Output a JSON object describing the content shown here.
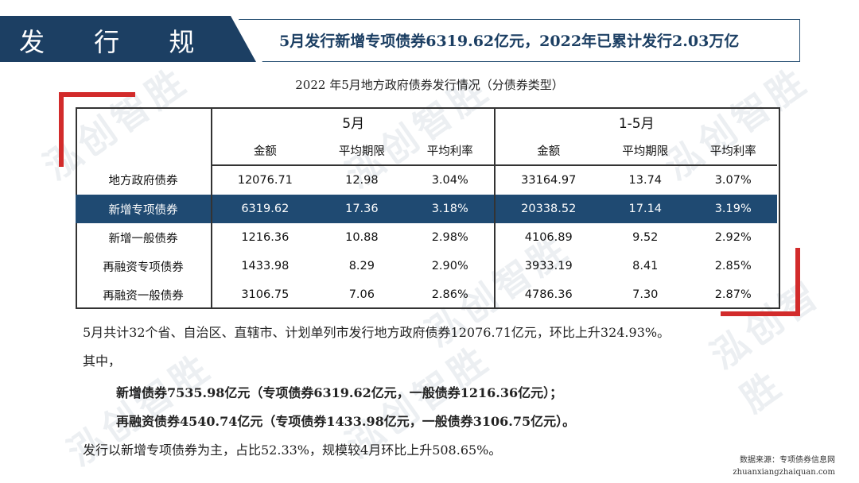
{
  "header": {
    "section_title": "发 行 规 模",
    "headline": "5月发行新增专项债券6319.62亿元，2022年已累计发行2.03万亿"
  },
  "watermark": "泓创智胜",
  "table": {
    "title": "2022 年5月地方政府债券发行情况（分债券类型）",
    "group_headers": [
      "5月",
      "1-5月"
    ],
    "sub_headers": [
      "金额",
      "平均期限",
      "平均利率",
      "金额",
      "平均期限",
      "平均利率"
    ],
    "rows": [
      {
        "name": "地方政府债券",
        "values": [
          "12076.71",
          "12.98",
          "3.04%",
          "33164.97",
          "13.74",
          "3.07%"
        ]
      },
      {
        "name": "新增专项债券",
        "values": [
          "6319.62",
          "17.36",
          "3.18%",
          "20338.52",
          "17.14",
          "3.19%"
        ]
      },
      {
        "name": "新增一般债券",
        "values": [
          "1216.36",
          "10.88",
          "2.98%",
          "4106.89",
          "9.52",
          "2.92%"
        ]
      },
      {
        "name": "再融资专项债券",
        "values": [
          "1433.98",
          "8.29",
          "2.90%",
          "3933.19",
          "8.41",
          "2.85%"
        ]
      },
      {
        "name": "再融资一般债券",
        "values": [
          "3106.75",
          "7.06",
          "2.86%",
          "4786.36",
          "7.30",
          "2.87%"
        ]
      }
    ]
  },
  "body": {
    "p1": "5月共计32个省、自治区、直辖市、计划单列市发行地方政府债券12076.71亿元，环比上升324.93%。",
    "p2": "其中，",
    "p3": "新增债券7535.98亿元（专项债券6319.62亿元，一般债券1216.36亿元）；",
    "p4": "再融资债券4540.74亿元（专项债券1433.98亿元，一般债券3106.75亿元）。",
    "p5": "发行以新增专项债券为主，占比52.33%，规模较4月环比上升508.65%。"
  },
  "source": {
    "line1": "数据来源：专项债券信息网",
    "line2": "zhuanxiangzhaiquan.com"
  },
  "colors": {
    "navy": "#1c3f63",
    "highlight": "#1f4a72",
    "accent_red": "#d22b2b"
  }
}
